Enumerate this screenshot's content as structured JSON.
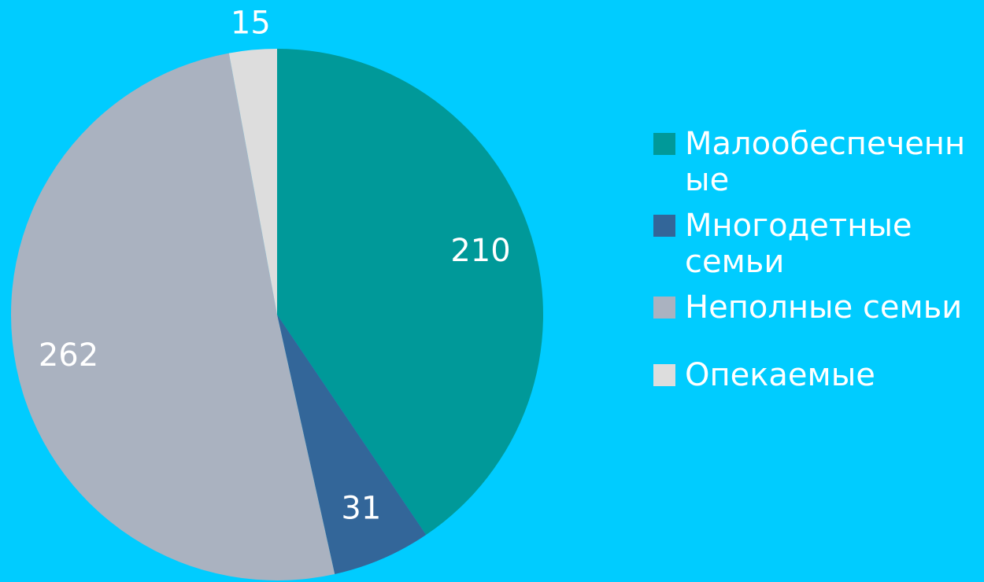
{
  "chart_data": {
    "type": "pie",
    "categories": [
      "Малообеспеченные",
      "Многодетные семьи",
      "Неполные семьи",
      "Опекаемые"
    ],
    "values": [
      210,
      31,
      262,
      15
    ],
    "colors": [
      "#009999",
      "#336699",
      "#aab2c0",
      "#dddddd"
    ]
  }
}
